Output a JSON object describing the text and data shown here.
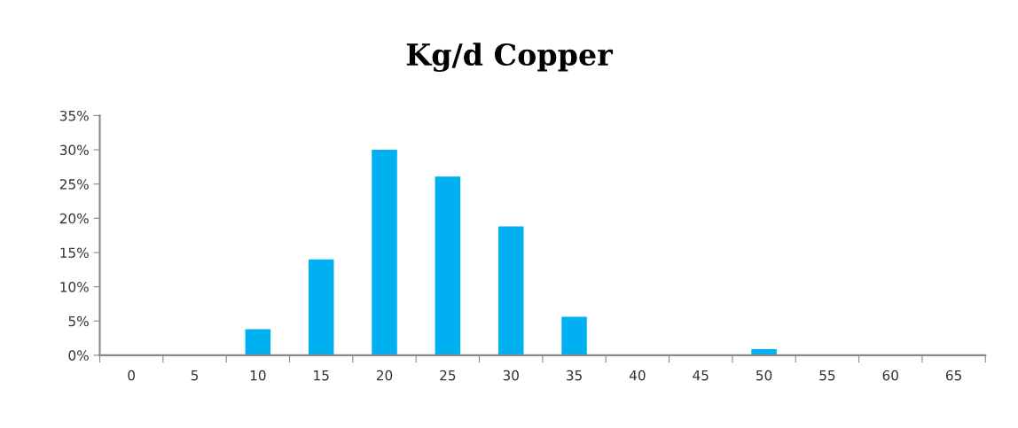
{
  "chart_data": {
    "type": "bar",
    "title": "Kg/d Copper",
    "categories": [
      "0",
      "5",
      "10",
      "15",
      "20",
      "25",
      "30",
      "35",
      "40",
      "45",
      "50",
      "55",
      "60",
      "65"
    ],
    "values": [
      0,
      0,
      3.8,
      14.0,
      30.0,
      26.1,
      18.8,
      5.6,
      0,
      0,
      0.9,
      0,
      0,
      0
    ],
    "color": "#00b0f0",
    "ylim": [
      0,
      35
    ],
    "yticks": [
      {
        "value": 0,
        "label": "0%"
      },
      {
        "value": 5,
        "label": "5%"
      },
      {
        "value": 10,
        "label": "10%"
      },
      {
        "value": 15,
        "label": "15%"
      },
      {
        "value": 20,
        "label": "20%"
      },
      {
        "value": 25,
        "label": "25%"
      },
      {
        "value": 30,
        "label": "30%"
      },
      {
        "value": 35,
        "label": "35%"
      }
    ],
    "grid": false
  }
}
